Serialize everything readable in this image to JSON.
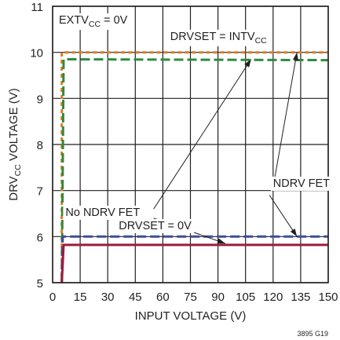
{
  "chart_data": {
    "type": "line",
    "xlabel": "INPUT VOLTAGE (V)",
    "ylabel": {
      "main": "DRV",
      "sub": "CC",
      "rest": " VOLTAGE (V)"
    },
    "xlim": [
      0,
      150
    ],
    "ylim": [
      5,
      11
    ],
    "xticks": [
      0,
      15,
      30,
      45,
      60,
      75,
      90,
      105,
      120,
      135,
      150
    ],
    "yticks": [
      5,
      6,
      7,
      8,
      9,
      10,
      11
    ],
    "grid": true,
    "figure_id": "3895 G19",
    "condition": {
      "main": "EXTV",
      "sub": "CC",
      "rest": " = 0V"
    },
    "series": [
      {
        "color": "#e07b1f",
        "dash": "dotted",
        "x": [
          5,
          5,
          150
        ],
        "y": [
          5,
          10.0,
          10.0
        ]
      },
      {
        "color": "#2e8b3e",
        "dash": "dashed",
        "x": [
          5,
          6,
          150
        ],
        "y": [
          5,
          9.85,
          9.83
        ]
      },
      {
        "color": "#3a4fa0",
        "dash": "dashed",
        "x": [
          5,
          5.5,
          150
        ],
        "y": [
          5,
          6.0,
          6.0
        ]
      },
      {
        "color": "#9e1b3c",
        "dash": "solid",
        "x": [
          5,
          6,
          150
        ],
        "y": [
          5,
          5.82,
          5.82
        ]
      }
    ],
    "annotations": [
      {
        "main": "DRVSET = INTV",
        "sub": "CC",
        "x": 64,
        "y": 10.27
      },
      {
        "main": "DRVSET = 0V",
        "sub": "",
        "x": 36,
        "y": 6.16
      },
      {
        "main": "NDRV FET",
        "sub": "",
        "x": 120,
        "y": 7.08
      },
      {
        "main": "No NDRV FET",
        "sub": "",
        "x": 7,
        "y": 6.45
      }
    ],
    "arrows": [
      {
        "from": [
          121,
          7.3
        ],
        "to": [
          133,
          10.0
        ]
      },
      {
        "from": [
          118,
          6.9
        ],
        "to": [
          133,
          6.0
        ]
      },
      {
        "from": [
          55,
          6.6
        ],
        "to": [
          108,
          9.85
        ]
      },
      {
        "from": [
          55,
          6.4
        ],
        "to": [
          94,
          5.85
        ]
      }
    ]
  }
}
